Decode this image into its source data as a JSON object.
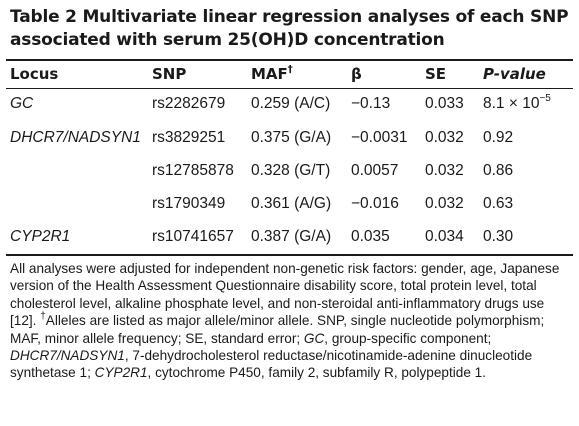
{
  "table": {
    "title": "Table 2 Multivariate linear regression analyses of each SNP associated with serum 25(OH)D concentration",
    "headers": {
      "locus": "Locus",
      "snp": "SNP",
      "maf": "MAF",
      "maf_sup": "†",
      "beta": "β",
      "se": "SE",
      "pvalue": "P-value"
    },
    "rows": [
      {
        "locus": "GC",
        "snp": "rs2282679",
        "maf": "0.259 (A/C)",
        "beta": "−0.13",
        "se": "0.033",
        "p": "8.1 × 10",
        "p_exp": "−5"
      },
      {
        "locus": "DHCR7/NADSYN1",
        "snp": "rs3829251",
        "maf": "0.375 (G/A)",
        "beta": "−0.0031",
        "se": "0.032",
        "p": "0.92",
        "p_exp": ""
      },
      {
        "locus": "",
        "snp": "rs12785878",
        "maf": "0.328 (G/T)",
        "beta": "0.0057",
        "se": "0.032",
        "p": "0.86",
        "p_exp": ""
      },
      {
        "locus": "",
        "snp": "rs1790349",
        "maf": "0.361 (A/G)",
        "beta": "−0.016",
        "se": "0.032",
        "p": "0.63",
        "p_exp": ""
      },
      {
        "locus": "CYP2R1",
        "snp": "rs10741657",
        "maf": "0.387 (G/A)",
        "beta": "0.035",
        "se": "0.034",
        "p": "0.30",
        "p_exp": ""
      }
    ],
    "footnote": {
      "part1": "All analyses were adjusted for independent non-genetic risk factors: gender, age, Japanese version of the Health Assessment Questionnaire disability score, total protein level, total cholesterol level, alkaline phosphate level, and non-steroidal anti-inflammatory drugs use [12]. ",
      "dagger": "†",
      "part2": "Alleles are listed as major allele/minor allele. SNP, single nucleotide polymorphism; MAF, minor allele frequency; SE, standard error; ",
      "gc": "GC",
      "part3": ", group-specific component; ",
      "dhcr": "DHCR7/NADSYN1",
      "part4": ", 7-dehydrocholesterol reductase/nicotinamide-adenine dinucleotide synthetase 1; ",
      "cyp": "CYP2R1",
      "part5": ", cytochrome P450, family 2, subfamily R, polypeptide 1."
    }
  }
}
